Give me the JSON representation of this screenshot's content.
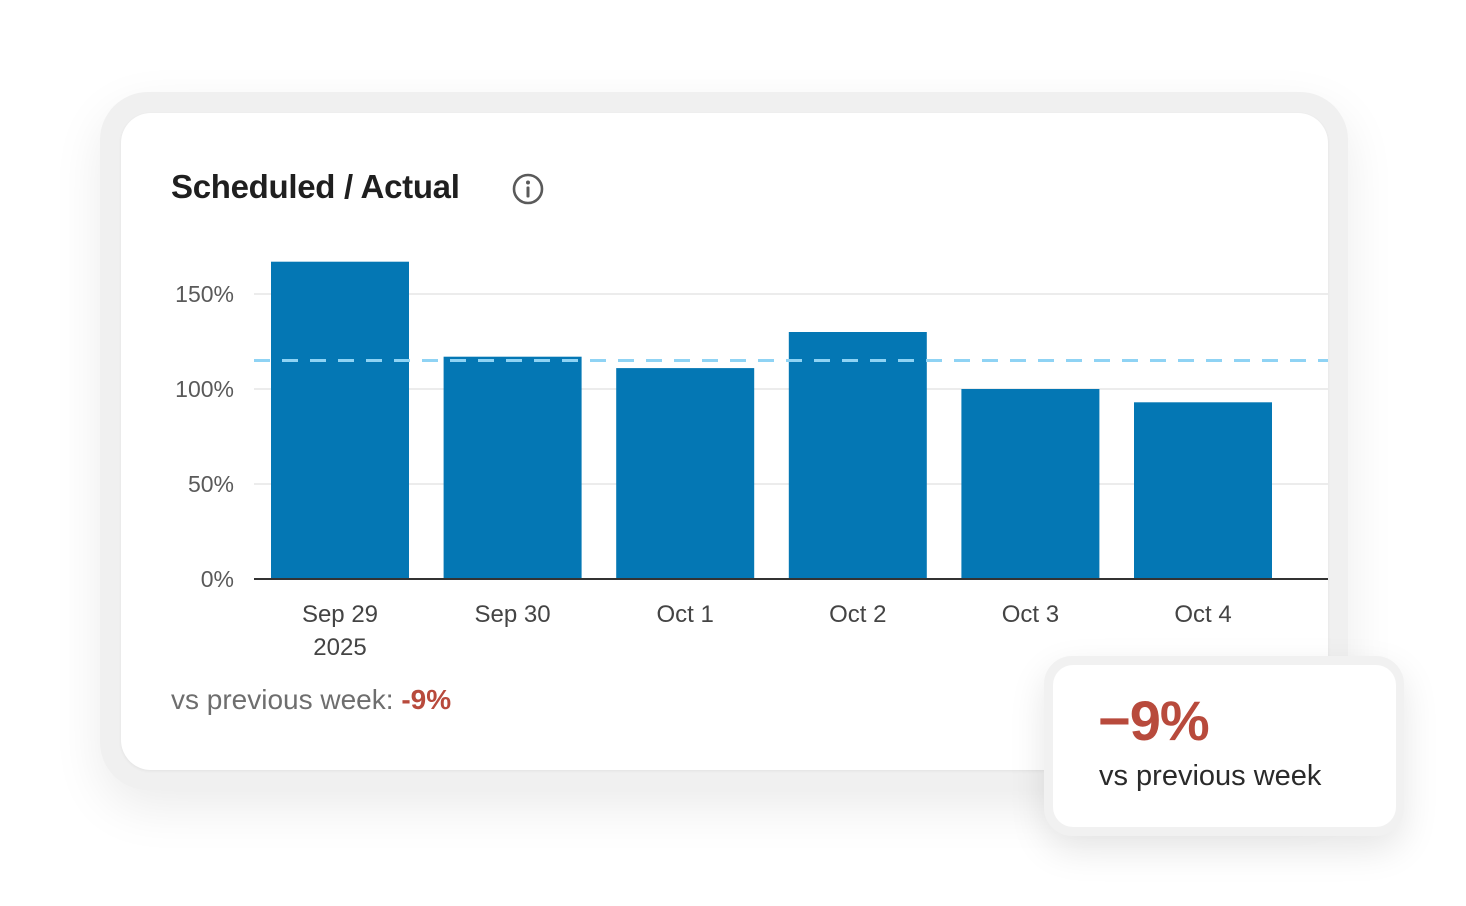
{
  "card": {
    "title": "Scheduled / Actual",
    "info_icon": "info-icon"
  },
  "comparison": {
    "label": "vs previous week:",
    "delta": "-9%"
  },
  "popup": {
    "value": "−9%",
    "label": "vs previous week"
  },
  "colors": {
    "bar": "#0477b4",
    "target_line": "#8fd3f4",
    "negative": "#b84a3c"
  },
  "chart_data": {
    "type": "bar",
    "categories": [
      [
        "Sep 29",
        "2025"
      ],
      [
        "Sep 30"
      ],
      [
        "Oct 1"
      ],
      [
        "Oct 2"
      ],
      [
        "Oct 3"
      ],
      [
        "Oct 4"
      ]
    ],
    "values": [
      167,
      117,
      111,
      130,
      100,
      93
    ],
    "reference_line": 115,
    "ylim": [
      0,
      170
    ],
    "yticks": [
      0,
      50,
      100,
      150
    ],
    "ytick_labels": [
      "0%",
      "50%",
      "100%",
      "150%"
    ],
    "grid": true,
    "title": "Scheduled / Actual"
  }
}
